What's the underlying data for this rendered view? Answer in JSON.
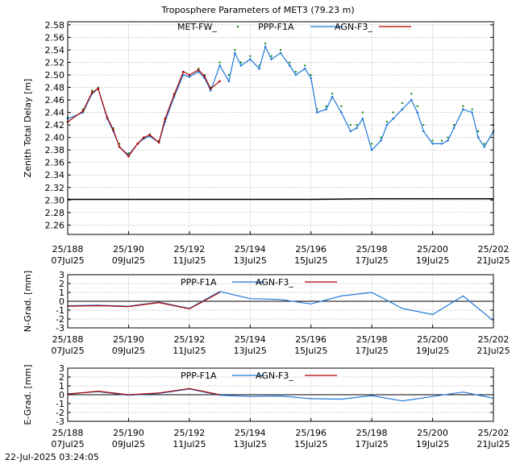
{
  "footer_timestamp": "22-Jul-2025 03:24:05",
  "x_ticks": [
    {
      "doy": "25/188",
      "date": "07Jul25"
    },
    {
      "doy": "25/190",
      "date": "09Jul25"
    },
    {
      "doy": "25/192",
      "date": "11Jul25"
    },
    {
      "doy": "25/194",
      "date": "13Jul25"
    },
    {
      "doy": "25/196",
      "date": "15Jul25"
    },
    {
      "doy": "25/198",
      "date": "17Jul25"
    },
    {
      "doy": "25/200",
      "date": "19Jul25"
    },
    {
      "doy": "25/202",
      "date": "21Jul25"
    }
  ],
  "colors": {
    "met": "#008000",
    "ppp": "#1f78d8",
    "agn": "#b00000",
    "baseline": "#000000",
    "grid": "#999999"
  },
  "chart_data": [
    {
      "type": "line",
      "title": "Troposphere Parameters of MET3 (79.23 m)",
      "ylabel": "Zenith Total Delay [m]",
      "xlim": [
        188,
        202
      ],
      "ylim": [
        2.245,
        2.585
      ],
      "y_ticks": [
        2.26,
        2.28,
        2.3,
        2.32,
        2.34,
        2.36,
        2.38,
        2.4,
        2.42,
        2.44,
        2.46,
        2.48,
        2.5,
        2.52,
        2.54,
        2.56,
        2.58
      ],
      "grid": true,
      "legend_position": "top-center",
      "series": [
        {
          "name": "MET-FW_",
          "style": "points",
          "x": [
            188,
            188.5,
            188.8,
            189,
            189.3,
            189.5,
            189.7,
            190,
            190.3,
            190.5,
            190.7,
            191,
            191.2,
            191.5,
            191.8,
            192,
            192.3,
            192.5,
            192.7,
            193,
            193.3,
            193.5,
            193.7,
            194,
            194.3,
            194.5,
            194.7,
            195,
            195.3,
            195.5,
            195.8,
            196,
            196.2,
            196.5,
            196.7,
            197,
            197.3,
            197.5,
            197.7,
            198,
            198.3,
            198.5,
            198.7,
            199,
            199.3,
            199.5,
            199.7,
            200,
            200.3,
            200.5,
            200.7,
            201,
            201.3,
            201.5,
            201.7,
            202
          ],
          "values": [
            2.432,
            2.445,
            2.475,
            2.48,
            2.43,
            2.415,
            2.39,
            2.375,
            2.39,
            2.4,
            2.405,
            2.395,
            2.43,
            2.47,
            2.505,
            2.5,
            2.51,
            2.5,
            2.48,
            2.52,
            2.5,
            2.54,
            2.52,
            2.53,
            2.515,
            2.55,
            2.53,
            2.54,
            2.52,
            2.505,
            2.515,
            2.5,
            2.445,
            2.45,
            2.47,
            2.45,
            2.42,
            2.42,
            2.44,
            2.39,
            2.4,
            2.425,
            2.44,
            2.455,
            2.47,
            2.45,
            2.42,
            2.395,
            2.395,
            2.4,
            2.42,
            2.45,
            2.445,
            2.41,
            2.39,
            2.42
          ]
        },
        {
          "name": "PPP-F1A",
          "style": "line-points",
          "x": [
            188,
            188.5,
            188.8,
            189,
            189.3,
            189.5,
            189.7,
            190,
            190.3,
            190.5,
            190.7,
            191,
            191.2,
            191.5,
            191.8,
            192,
            192.3,
            192.5,
            192.7,
            193,
            193.3,
            193.5,
            193.7,
            194,
            194.3,
            194.5,
            194.7,
            195,
            195.3,
            195.5,
            195.8,
            196,
            196.2,
            196.5,
            196.7,
            197,
            197.3,
            197.5,
            197.7,
            198,
            198.3,
            198.5,
            198.7,
            199,
            199.3,
            199.5,
            199.7,
            200,
            200.3,
            200.5,
            200.7,
            201,
            201.3,
            201.5,
            201.7,
            202
          ],
          "values": [
            2.43,
            2.44,
            2.47,
            2.478,
            2.43,
            2.41,
            2.385,
            2.372,
            2.39,
            2.398,
            2.402,
            2.392,
            2.425,
            2.465,
            2.5,
            2.497,
            2.505,
            2.495,
            2.475,
            2.515,
            2.49,
            2.535,
            2.515,
            2.525,
            2.51,
            2.545,
            2.525,
            2.535,
            2.515,
            2.5,
            2.51,
            2.495,
            2.44,
            2.445,
            2.465,
            2.44,
            2.41,
            2.415,
            2.43,
            2.38,
            2.395,
            2.42,
            2.43,
            2.445,
            2.46,
            2.44,
            2.41,
            2.39,
            2.39,
            2.395,
            2.415,
            2.445,
            2.44,
            2.4,
            2.385,
            2.41
          ]
        },
        {
          "name": "AGN-F3_",
          "style": "line-points",
          "x": [
            188,
            188.5,
            188.8,
            189,
            189.3,
            189.5,
            189.7,
            190,
            190.3,
            190.5,
            190.7,
            191,
            191.2,
            191.5,
            191.8,
            192,
            192.3,
            192.5,
            192.7,
            193
          ],
          "values": [
            2.425,
            2.442,
            2.472,
            2.478,
            2.432,
            2.412,
            2.385,
            2.37,
            2.39,
            2.4,
            2.404,
            2.392,
            2.43,
            2.468,
            2.505,
            2.5,
            2.508,
            2.498,
            2.478,
            2.49
          ]
        },
        {
          "name": "",
          "style": "baseline",
          "x": [
            188,
            190,
            192,
            194,
            196,
            198,
            200,
            202
          ],
          "values": [
            2.301,
            2.301,
            2.301,
            2.301,
            2.301,
            2.302,
            2.302,
            2.302
          ]
        }
      ]
    },
    {
      "type": "line",
      "ylabel": "N-Grad. [mm]",
      "xlim": [
        188,
        202
      ],
      "ylim": [
        -3,
        3
      ],
      "y_ticks": [
        3,
        2,
        1,
        0,
        -1,
        -2,
        -3
      ],
      "grid": true,
      "legend_position": "top-center",
      "series": [
        {
          "name": "PPP-F1A",
          "x": [
            188,
            189,
            190,
            191,
            192,
            193,
            194,
            195,
            196,
            197,
            198,
            199,
            200,
            201,
            202
          ],
          "values": [
            -0.5,
            -0.45,
            -0.55,
            -0.1,
            -0.8,
            1.1,
            0.3,
            0.2,
            -0.3,
            0.6,
            1.0,
            -0.8,
            -1.5,
            0.6,
            -2.2
          ]
        },
        {
          "name": "AGN-F3_",
          "x": [
            188,
            189,
            190,
            191,
            192,
            193
          ],
          "values": [
            -0.55,
            -0.5,
            -0.6,
            -0.15,
            -0.85,
            1.0
          ]
        }
      ]
    },
    {
      "type": "line",
      "ylabel": "E-Grad. [mm]",
      "xlim": [
        188,
        202
      ],
      "ylim": [
        -3,
        3
      ],
      "y_ticks": [
        3,
        2,
        1,
        0,
        -1,
        -2,
        -3
      ],
      "grid": true,
      "legend_position": "top-center",
      "series": [
        {
          "name": "PPP-F1A",
          "x": [
            188,
            189,
            190,
            191,
            192,
            193,
            194,
            195,
            196,
            197,
            198,
            199,
            200,
            201,
            202
          ],
          "values": [
            0.1,
            0.35,
            -0.05,
            0.15,
            0.65,
            -0.05,
            -0.2,
            -0.15,
            -0.45,
            -0.5,
            -0.1,
            -0.7,
            -0.2,
            0.3,
            -0.4
          ]
        },
        {
          "name": "AGN-F3_",
          "x": [
            188,
            189,
            190,
            191,
            192,
            193
          ],
          "values": [
            0.05,
            0.4,
            0.0,
            0.2,
            0.7,
            0.0
          ]
        }
      ]
    }
  ]
}
